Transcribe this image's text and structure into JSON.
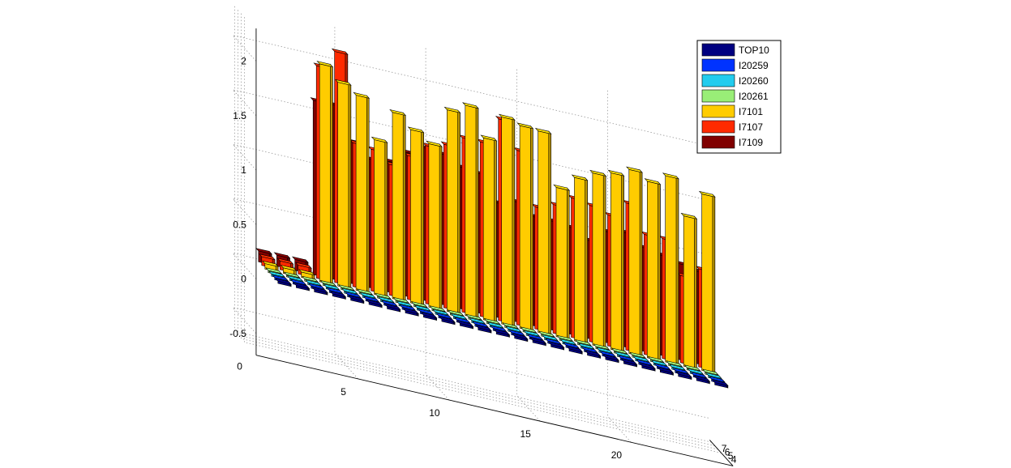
{
  "chart_data": {
    "type": "bar3",
    "title": "",
    "xlabel": "",
    "ylabel": "",
    "zlabel": "",
    "x_ticks": [
      "5",
      "10",
      "15",
      "20"
    ],
    "y_ticks": [
      "4",
      "5",
      "6",
      "7"
    ],
    "z_ticks": [
      "-0.5",
      "0",
      "0.5",
      "1",
      "1.5",
      "2"
    ],
    "z_floor_label": "0",
    "zlim": [
      -0.7,
      2.3
    ],
    "grid": true,
    "legend_position": "top-right",
    "categories": [
      1,
      2,
      3,
      4,
      5,
      6,
      7,
      8,
      9,
      10,
      11,
      12,
      13,
      14,
      15,
      16,
      17,
      18,
      19,
      20,
      21,
      22,
      23,
      24,
      25
    ],
    "series": [
      {
        "name": "TOP10",
        "color": "#000080",
        "values": [
          0,
          0,
          0,
          0,
          0,
          0,
          0,
          0,
          0,
          0,
          0,
          0,
          0,
          0,
          0,
          0,
          0,
          0,
          0,
          0,
          0,
          0,
          0,
          0,
          0
        ]
      },
      {
        "name": "I20259",
        "color": "#0033ff",
        "values": [
          0,
          0,
          0,
          0,
          0,
          0,
          0,
          0,
          0,
          0,
          0,
          0,
          0,
          0,
          0,
          0,
          0,
          0,
          0,
          0,
          0,
          0,
          0,
          0,
          0
        ]
      },
      {
        "name": "I20260",
        "color": "#22ccee",
        "values": [
          0,
          0,
          0,
          0,
          0,
          0,
          0,
          0,
          0,
          0,
          0,
          0,
          0,
          0,
          0,
          0,
          0,
          0,
          0,
          0,
          0,
          0,
          0,
          0,
          0
        ]
      },
      {
        "name": "I20261",
        "color": "#99ee77",
        "values": [
          0,
          0,
          0,
          0,
          0,
          0,
          0,
          0,
          0,
          0,
          0,
          0,
          0,
          0,
          0,
          0,
          0,
          0,
          0,
          0,
          0,
          0,
          0,
          0,
          0
        ]
      },
      {
        "name": "I7101",
        "color": "#ffcc00",
        "values": [
          0.05,
          0.05,
          0.05,
          2.0,
          1.87,
          1.79,
          1.42,
          1.71,
          1.59,
          1.5,
          1.85,
          1.93,
          1.67,
          1.9,
          1.86,
          1.85,
          1.37,
          1.5,
          1.58,
          1.62,
          1.69,
          1.62,
          1.71,
          1.38,
          1.62
        ]
      },
      {
        "name": "I7107",
        "color": "#ff2a00",
        "values": [
          0.08,
          0.08,
          0.08,
          1.95,
          2.12,
          1.32,
          1.3,
          1.2,
          1.32,
          1.45,
          1.5,
          1.6,
          1.6,
          1.85,
          1.6,
          1.12,
          1.18,
          1.28,
          1.25,
          1.2,
          1.35,
          1.1,
          1.1,
          0.8,
          0.9
        ]
      },
      {
        "name": "I7109",
        "color": "#800000",
        "values": [
          0.1,
          0.1,
          0.1,
          1.6,
          1.6,
          1.3,
          1.18,
          1.2,
          1.32,
          1.4,
          1.38,
          1.3,
          1.28,
          1.05,
          1.1,
          1.0,
          1.0,
          0.98,
          0.9,
          1.02,
          1.05,
          0.95,
          0.92,
          0.88,
          0.85
        ]
      }
    ]
  }
}
